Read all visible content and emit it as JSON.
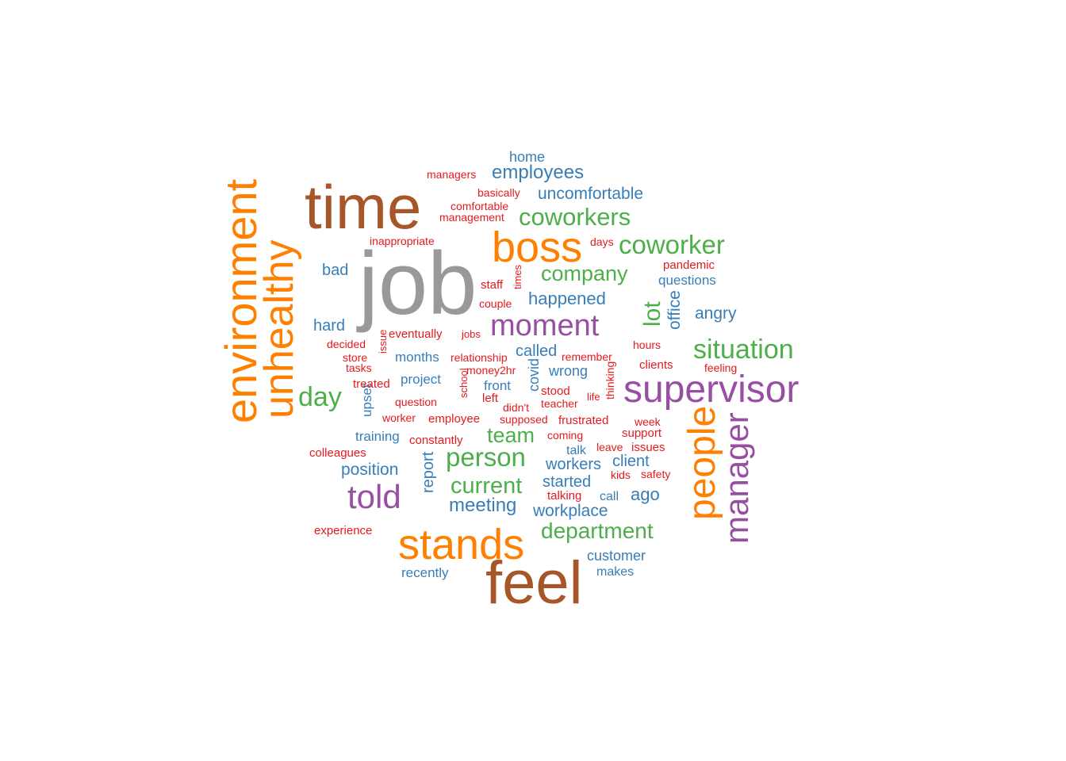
{
  "title": "",
  "colors": {
    "gray": "#999999",
    "brown": "#A65628",
    "orange": "#FF7F00",
    "purple": "#984EA3",
    "green": "#4DAF4A",
    "blue": "#377EB8",
    "red": "#E41A1C"
  },
  "words": [
    {
      "text": "job",
      "color": "gray"
    },
    {
      "text": "time",
      "color": "brown"
    },
    {
      "text": "feel",
      "color": "brown"
    },
    {
      "text": "environment",
      "color": "orange"
    },
    {
      "text": "unhealthy",
      "color": "orange"
    },
    {
      "text": "boss",
      "color": "orange"
    },
    {
      "text": "stands",
      "color": "orange"
    },
    {
      "text": "people",
      "color": "orange"
    },
    {
      "text": "supervisor",
      "color": "purple"
    },
    {
      "text": "manager",
      "color": "purple"
    },
    {
      "text": "moment",
      "color": "purple"
    },
    {
      "text": "told",
      "color": "purple"
    },
    {
      "text": "coworker",
      "color": "green"
    },
    {
      "text": "coworkers",
      "color": "green"
    },
    {
      "text": "company",
      "color": "green"
    },
    {
      "text": "situation",
      "color": "green"
    },
    {
      "text": "day",
      "color": "green"
    },
    {
      "text": "person",
      "color": "green"
    },
    {
      "text": "current",
      "color": "green"
    },
    {
      "text": "department",
      "color": "green"
    },
    {
      "text": "team",
      "color": "green"
    },
    {
      "text": "lot",
      "color": "green"
    },
    {
      "text": "employees",
      "color": "blue"
    },
    {
      "text": "uncomfortable",
      "color": "blue"
    },
    {
      "text": "home",
      "color": "blue"
    },
    {
      "text": "happened",
      "color": "blue"
    },
    {
      "text": "meeting",
      "color": "blue"
    },
    {
      "text": "workplace",
      "color": "blue"
    },
    {
      "text": "office",
      "color": "blue"
    },
    {
      "text": "angry",
      "color": "blue"
    },
    {
      "text": "questions",
      "color": "blue"
    },
    {
      "text": "bad",
      "color": "blue"
    },
    {
      "text": "hard",
      "color": "blue"
    },
    {
      "text": "months",
      "color": "blue"
    },
    {
      "text": "project",
      "color": "blue"
    },
    {
      "text": "called",
      "color": "blue"
    },
    {
      "text": "wrong",
      "color": "blue"
    },
    {
      "text": "front",
      "color": "blue"
    },
    {
      "text": "covid",
      "color": "blue"
    },
    {
      "text": "upset",
      "color": "blue"
    },
    {
      "text": "training",
      "color": "blue"
    },
    {
      "text": "position",
      "color": "blue"
    },
    {
      "text": "report",
      "color": "blue"
    },
    {
      "text": "workers",
      "color": "blue"
    },
    {
      "text": "client",
      "color": "blue"
    },
    {
      "text": "started",
      "color": "blue"
    },
    {
      "text": "ago",
      "color": "blue"
    },
    {
      "text": "call",
      "color": "blue"
    },
    {
      "text": "talk",
      "color": "blue"
    },
    {
      "text": "customer",
      "color": "blue"
    },
    {
      "text": "makes",
      "color": "blue"
    },
    {
      "text": "recently",
      "color": "blue"
    },
    {
      "text": "managers",
      "color": "red"
    },
    {
      "text": "basically",
      "color": "red"
    },
    {
      "text": "comfortable",
      "color": "red"
    },
    {
      "text": "management",
      "color": "red"
    },
    {
      "text": "inappropriate",
      "color": "red"
    },
    {
      "text": "days",
      "color": "red"
    },
    {
      "text": "pandemic",
      "color": "red"
    },
    {
      "text": "staff",
      "color": "red"
    },
    {
      "text": "times",
      "color": "red"
    },
    {
      "text": "couple",
      "color": "red"
    },
    {
      "text": "eventually",
      "color": "red"
    },
    {
      "text": "jobs",
      "color": "red"
    },
    {
      "text": "issue",
      "color": "red"
    },
    {
      "text": "decided",
      "color": "red"
    },
    {
      "text": "store",
      "color": "red"
    },
    {
      "text": "tasks",
      "color": "red"
    },
    {
      "text": "relationship",
      "color": "red"
    },
    {
      "text": "remember",
      "color": "red"
    },
    {
      "text": "hours",
      "color": "red"
    },
    {
      "text": "clients",
      "color": "red"
    },
    {
      "text": "feeling",
      "color": "red"
    },
    {
      "text": "money2hr",
      "color": "red"
    },
    {
      "text": "thinking",
      "color": "red"
    },
    {
      "text": "treated",
      "color": "red"
    },
    {
      "text": "school",
      "color": "red"
    },
    {
      "text": "stood",
      "color": "red"
    },
    {
      "text": "left",
      "color": "red"
    },
    {
      "text": "teacher",
      "color": "red"
    },
    {
      "text": "life",
      "color": "red"
    },
    {
      "text": "question",
      "color": "red"
    },
    {
      "text": "didn't",
      "color": "red"
    },
    {
      "text": "worker",
      "color": "red"
    },
    {
      "text": "employee",
      "color": "red"
    },
    {
      "text": "supposed",
      "color": "red"
    },
    {
      "text": "frustrated",
      "color": "red"
    },
    {
      "text": "week",
      "color": "red"
    },
    {
      "text": "constantly",
      "color": "red"
    },
    {
      "text": "coming",
      "color": "red"
    },
    {
      "text": "support",
      "color": "red"
    },
    {
      "text": "colleagues",
      "color": "red"
    },
    {
      "text": "leave",
      "color": "red"
    },
    {
      "text": "issues",
      "color": "red"
    },
    {
      "text": "kids",
      "color": "red"
    },
    {
      "text": "safety",
      "color": "red"
    },
    {
      "text": "talking",
      "color": "red"
    },
    {
      "text": "experience",
      "color": "red"
    }
  ]
}
